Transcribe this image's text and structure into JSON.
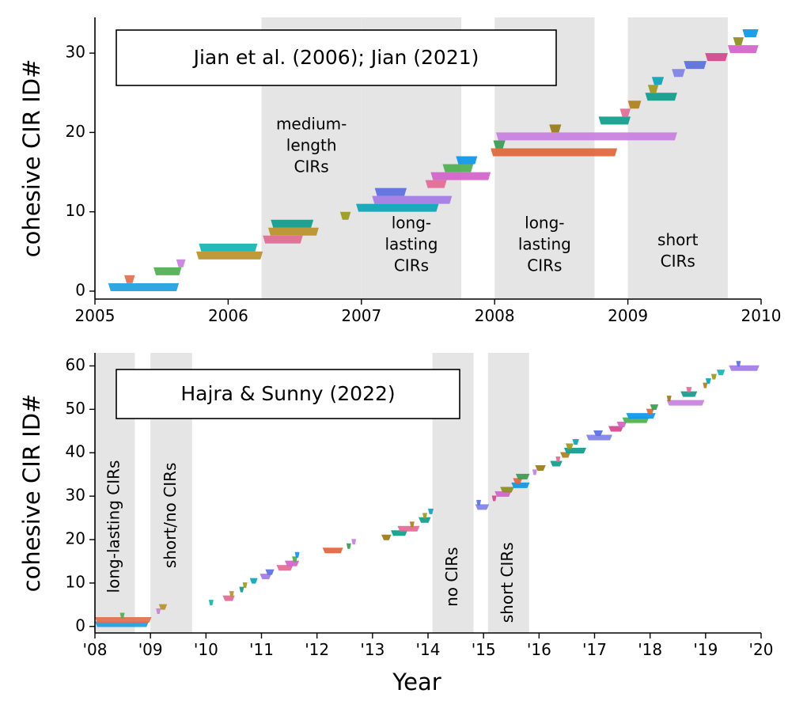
{
  "chart_data": [
    {
      "type": "timeline-bars",
      "title": "Jian et al. (2006); Jian (2021)",
      "xlabel": "",
      "ylabel": "cohesive CIR ID#",
      "xlim": [
        2005,
        2010
      ],
      "ylim": [
        -1,
        34.5
      ],
      "xtick_values": [
        2005,
        2006,
        2007,
        2008,
        2009,
        2010
      ],
      "xticks": [
        "2005",
        "2006",
        "2007",
        "2008",
        "2009",
        "2010"
      ],
      "yticks": [
        0,
        10,
        20,
        30
      ],
      "shaded_regions": [
        {
          "start": 2006.25,
          "end": 2007.0,
          "label": "medium-\nlength\nCIRs"
        },
        {
          "start": 2007.0,
          "end": 2007.75,
          "label": "long-\nlasting\nCIRs"
        },
        {
          "start": 2008.0,
          "end": 2008.75,
          "label": "long-\nlasting\nCIRs"
        },
        {
          "start": 2009.0,
          "end": 2009.75,
          "label": "short\nCIRs"
        }
      ],
      "intervals": [
        {
          "id": 0.5,
          "start": 2005.1,
          "end": 2005.63,
          "color": "#1f9fe0"
        },
        {
          "id": 1.5,
          "start": 2005.22,
          "end": 2005.3,
          "color": "#e07050"
        },
        {
          "id": 2.5,
          "start": 2005.44,
          "end": 2005.65,
          "color": "#4caf50"
        },
        {
          "id": 3.5,
          "start": 2005.61,
          "end": 2005.68,
          "color": "#c77fe0"
        },
        {
          "id": 4.5,
          "start": 2005.76,
          "end": 2006.26,
          "color": "#b8912a"
        },
        {
          "id": 5.5,
          "start": 2005.78,
          "end": 2006.22,
          "color": "#12b3b3"
        },
        {
          "id": 6.5,
          "start": 2006.26,
          "end": 2006.56,
          "color": "#e26a96"
        },
        {
          "id": 7.5,
          "start": 2006.3,
          "end": 2006.68,
          "color": "#b8912a"
        },
        {
          "id": 8.5,
          "start": 2006.32,
          "end": 2006.64,
          "color": "#0e9c8a"
        },
        {
          "id": 9.5,
          "start": 2006.84,
          "end": 2006.92,
          "color": "#9a9a20"
        },
        {
          "id": 10.5,
          "start": 2006.96,
          "end": 2007.58,
          "color": "#0aa5b8"
        },
        {
          "id": 11.5,
          "start": 2007.08,
          "end": 2007.68,
          "color": "#a27be6"
        },
        {
          "id": 12.5,
          "start": 2007.1,
          "end": 2007.34,
          "color": "#5a6fe0"
        },
        {
          "id": 13.5,
          "start": 2007.48,
          "end": 2007.64,
          "color": "#e26a96"
        },
        {
          "id": 14.5,
          "start": 2007.52,
          "end": 2007.97,
          "color": "#d162c8"
        },
        {
          "id": 15.5,
          "start": 2007.61,
          "end": 2007.84,
          "color": "#4caf50"
        },
        {
          "id": 16.5,
          "start": 2007.71,
          "end": 2007.87,
          "color": "#0a95e8"
        },
        {
          "id": 17.5,
          "start": 2007.97,
          "end": 2008.92,
          "color": "#e06538"
        },
        {
          "id": 18.5,
          "start": 2007.99,
          "end": 2008.08,
          "color": "#3a9a52"
        },
        {
          "id": 19.5,
          "start": 2008.01,
          "end": 2009.37,
          "color": "#c77fe0"
        },
        {
          "id": 20.5,
          "start": 2008.41,
          "end": 2008.5,
          "color": "#9a7a18"
        },
        {
          "id": 21.5,
          "start": 2008.78,
          "end": 2009.02,
          "color": "#0e9c8a"
        },
        {
          "id": 22.5,
          "start": 2008.94,
          "end": 2009.02,
          "color": "#e26a96"
        },
        {
          "id": 23.5,
          "start": 2009.0,
          "end": 2009.1,
          "color": "#b0801a"
        },
        {
          "id": 24.5,
          "start": 2009.13,
          "end": 2009.37,
          "color": "#0e9c8a"
        },
        {
          "id": 25.5,
          "start": 2009.15,
          "end": 2009.23,
          "color": "#9a9a20"
        },
        {
          "id": 26.5,
          "start": 2009.18,
          "end": 2009.27,
          "color": "#0aa5b8"
        },
        {
          "id": 27.5,
          "start": 2009.33,
          "end": 2009.43,
          "color": "#8080e6"
        },
        {
          "id": 28.5,
          "start": 2009.42,
          "end": 2009.59,
          "color": "#5a6fe0"
        },
        {
          "id": 29.5,
          "start": 2009.58,
          "end": 2009.75,
          "color": "#d0488c"
        },
        {
          "id": 30.5,
          "start": 2009.75,
          "end": 2009.98,
          "color": "#d162c8"
        },
        {
          "id": 31.5,
          "start": 2009.79,
          "end": 2009.87,
          "color": "#8c8c20"
        },
        {
          "id": 32.5,
          "start": 2009.86,
          "end": 2009.98,
          "color": "#0a95e8"
        }
      ]
    },
    {
      "type": "timeline-bars",
      "title": "Hajra & Sunny (2022)",
      "xlabel": "Year",
      "ylabel": "cohesive CIR ID#",
      "xlim": [
        2008,
        2020
      ],
      "ylim": [
        -1.5,
        63
      ],
      "xtick_values": [
        2008,
        2009,
        2010,
        2011,
        2012,
        2013,
        2014,
        2015,
        2016,
        2017,
        2018,
        2019,
        2020
      ],
      "xticks": [
        "'08",
        "'09",
        "'10",
        "'11",
        "'12",
        "'13",
        "'14",
        "'15",
        "'16",
        "'17",
        "'18",
        "'19",
        "'20"
      ],
      "yticks": [
        0,
        10,
        20,
        30,
        40,
        50,
        60
      ],
      "shaded_regions": [
        {
          "start": 2008.0,
          "end": 2008.72,
          "label": "long-lasting CIRs"
        },
        {
          "start": 2009.0,
          "end": 2009.75,
          "label": "short/no CIRs"
        },
        {
          "start": 2014.08,
          "end": 2014.82,
          "label": "no CIRs"
        },
        {
          "start": 2015.08,
          "end": 2015.82,
          "label": "short CIRs"
        }
      ],
      "intervals": [
        {
          "id": 0.5,
          "start": 2008.0,
          "end": 2008.97,
          "color": "#1f9fe0"
        },
        {
          "id": 1.5,
          "start": 2008.0,
          "end": 2009.02,
          "color": "#e07050"
        },
        {
          "id": 2.5,
          "start": 2008.45,
          "end": 2008.52,
          "color": "#4caf50"
        },
        {
          "id": 3.5,
          "start": 2009.1,
          "end": 2009.16,
          "color": "#c77fe0"
        },
        {
          "id": 4.5,
          "start": 2009.15,
          "end": 2009.3,
          "color": "#b8912a"
        },
        {
          "id": 5.5,
          "start": 2010.05,
          "end": 2010.13,
          "color": "#12b3b3"
        },
        {
          "id": 6.5,
          "start": 2010.3,
          "end": 2010.52,
          "color": "#e26a96"
        },
        {
          "id": 7.5,
          "start": 2010.42,
          "end": 2010.5,
          "color": "#b8912a"
        },
        {
          "id": 8.5,
          "start": 2010.6,
          "end": 2010.66,
          "color": "#0e9c8a"
        },
        {
          "id": 9.5,
          "start": 2010.66,
          "end": 2010.72,
          "color": "#9a9a20"
        },
        {
          "id": 10.5,
          "start": 2010.79,
          "end": 2010.93,
          "color": "#0aa5b8"
        },
        {
          "id": 11.5,
          "start": 2010.97,
          "end": 2011.18,
          "color": "#a27be6"
        },
        {
          "id": 12.5,
          "start": 2011.07,
          "end": 2011.23,
          "color": "#5a6fe0"
        },
        {
          "id": 13.5,
          "start": 2011.27,
          "end": 2011.57,
          "color": "#e26a96"
        },
        {
          "id": 14.5,
          "start": 2011.42,
          "end": 2011.68,
          "color": "#d162c8"
        },
        {
          "id": 15.5,
          "start": 2011.55,
          "end": 2011.65,
          "color": "#4caf50"
        },
        {
          "id": 16.5,
          "start": 2011.6,
          "end": 2011.68,
          "color": "#0a95e8"
        },
        {
          "id": 17.5,
          "start": 2012.1,
          "end": 2012.47,
          "color": "#e06538"
        },
        {
          "id": 18.5,
          "start": 2012.53,
          "end": 2012.61,
          "color": "#3a9a52"
        },
        {
          "id": 19.5,
          "start": 2012.62,
          "end": 2012.7,
          "color": "#c77fe0"
        },
        {
          "id": 20.5,
          "start": 2013.16,
          "end": 2013.34,
          "color": "#9a7a18"
        },
        {
          "id": 21.5,
          "start": 2013.33,
          "end": 2013.63,
          "color": "#0e9c8a"
        },
        {
          "id": 22.5,
          "start": 2013.45,
          "end": 2013.85,
          "color": "#e26a96"
        },
        {
          "id": 23.5,
          "start": 2013.67,
          "end": 2013.75,
          "color": "#b0801a"
        },
        {
          "id": 24.5,
          "start": 2013.83,
          "end": 2014.05,
          "color": "#0e9c8a"
        },
        {
          "id": 25.5,
          "start": 2013.9,
          "end": 2013.98,
          "color": "#9a9a20"
        },
        {
          "id": 26.5,
          "start": 2014.0,
          "end": 2014.1,
          "color": "#0aa5b8"
        },
        {
          "id": 27.5,
          "start": 2014.85,
          "end": 2015.1,
          "color": "#8080e6"
        },
        {
          "id": 28.5,
          "start": 2014.87,
          "end": 2014.95,
          "color": "#5a6fe0"
        },
        {
          "id": 29.5,
          "start": 2015.15,
          "end": 2015.23,
          "color": "#d0488c"
        },
        {
          "id": 30.5,
          "start": 2015.2,
          "end": 2015.5,
          "color": "#d162c8"
        },
        {
          "id": 31.5,
          "start": 2015.3,
          "end": 2015.55,
          "color": "#8c8c20"
        },
        {
          "id": 32.5,
          "start": 2015.5,
          "end": 2015.83,
          "color": "#0a95e8"
        },
        {
          "id": 33.5,
          "start": 2015.53,
          "end": 2015.7,
          "color": "#e06538"
        },
        {
          "id": 34.5,
          "start": 2015.58,
          "end": 2015.83,
          "color": "#3a9a52"
        },
        {
          "id": 35.5,
          "start": 2015.88,
          "end": 2015.95,
          "color": "#c77fe0"
        },
        {
          "id": 36.5,
          "start": 2015.93,
          "end": 2016.12,
          "color": "#9a7a18"
        },
        {
          "id": 37.5,
          "start": 2016.2,
          "end": 2016.42,
          "color": "#0e9c8a"
        },
        {
          "id": 38.5,
          "start": 2016.3,
          "end": 2016.38,
          "color": "#e26a96"
        },
        {
          "id": 39.5,
          "start": 2016.38,
          "end": 2016.57,
          "color": "#b0801a"
        },
        {
          "id": 40.5,
          "start": 2016.45,
          "end": 2016.85,
          "color": "#0e9c8a"
        },
        {
          "id": 41.5,
          "start": 2016.48,
          "end": 2016.62,
          "color": "#9a9a20"
        },
        {
          "id": 42.5,
          "start": 2016.6,
          "end": 2016.72,
          "color": "#0aa5b8"
        },
        {
          "id": 43.5,
          "start": 2016.85,
          "end": 2017.32,
          "color": "#8080e6"
        },
        {
          "id": 44.5,
          "start": 2016.98,
          "end": 2017.15,
          "color": "#5a6fe0"
        },
        {
          "id": 45.5,
          "start": 2017.25,
          "end": 2017.52,
          "color": "#d0488c"
        },
        {
          "id": 46.5,
          "start": 2017.4,
          "end": 2017.58,
          "color": "#d162c8"
        },
        {
          "id": 47.5,
          "start": 2017.5,
          "end": 2017.98,
          "color": "#4caf50"
        },
        {
          "id": 48.5,
          "start": 2017.57,
          "end": 2018.1,
          "color": "#0a95e8"
        },
        {
          "id": 49.5,
          "start": 2017.93,
          "end": 2018.07,
          "color": "#e06538"
        },
        {
          "id": 50.5,
          "start": 2018.0,
          "end": 2018.15,
          "color": "#3a9a52"
        },
        {
          "id": 51.5,
          "start": 2018.3,
          "end": 2018.98,
          "color": "#c77fe0"
        },
        {
          "id": 52.5,
          "start": 2018.3,
          "end": 2018.38,
          "color": "#9a7a18"
        },
        {
          "id": 53.5,
          "start": 2018.55,
          "end": 2018.85,
          "color": "#0e9c8a"
        },
        {
          "id": 54.5,
          "start": 2018.65,
          "end": 2018.75,
          "color": "#e26a96"
        },
        {
          "id": 55.5,
          "start": 2018.95,
          "end": 2019.03,
          "color": "#b0801a"
        },
        {
          "id": 56.5,
          "start": 2019.0,
          "end": 2019.1,
          "color": "#0aa5b8"
        },
        {
          "id": 57.5,
          "start": 2019.1,
          "end": 2019.2,
          "color": "#9a9a20"
        },
        {
          "id": 58.5,
          "start": 2019.2,
          "end": 2019.35,
          "color": "#12b3b3"
        },
        {
          "id": 59.5,
          "start": 2019.42,
          "end": 2019.97,
          "color": "#a27be6"
        },
        {
          "id": 60.5,
          "start": 2019.55,
          "end": 2019.63,
          "color": "#5a6fe0"
        }
      ]
    }
  ]
}
